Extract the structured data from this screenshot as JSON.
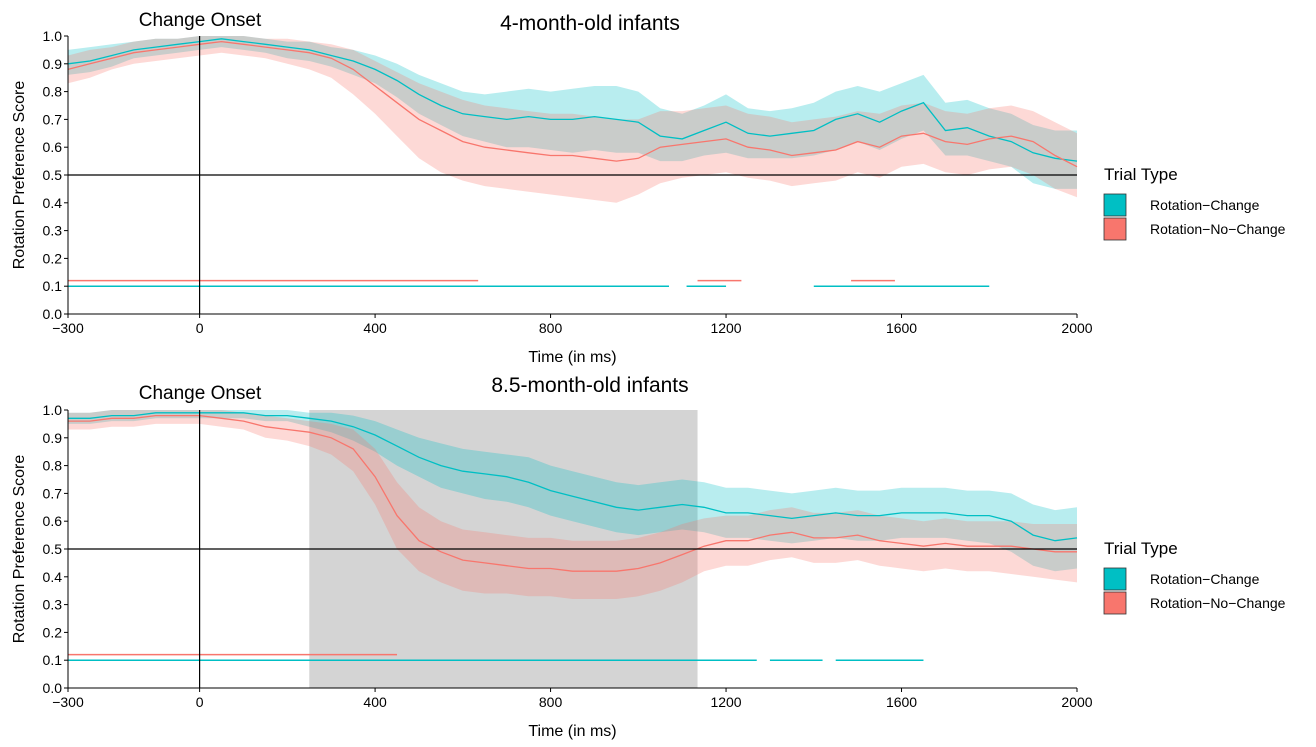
{
  "colors": {
    "change": "#00BFC4",
    "nochange": "#F8766D",
    "window": "#cccccc"
  },
  "legend": {
    "title": "Trial Type",
    "items": [
      "Rotation−Change",
      "Rotation−No−Change"
    ]
  },
  "chart_data": [
    {
      "type": "line",
      "title": "4-month-old infants",
      "annotation": "Change Onset",
      "xlabel": "Time (in ms)",
      "ylabel": "Rotation Preference Score",
      "xlim": [
        -300,
        2000
      ],
      "ylim": [
        0,
        1
      ],
      "xticks": [
        -300,
        0,
        400,
        800,
        1200,
        1600,
        2000
      ],
      "yticks": [
        0.0,
        0.1,
        0.2,
        0.3,
        0.4,
        0.5,
        0.6,
        0.7,
        0.8,
        0.9,
        1.0
      ],
      "reference_lines": {
        "x": 0,
        "y": 0.5
      },
      "highlight_window": null,
      "x": [
        -300,
        -250,
        -200,
        -150,
        -100,
        -50,
        0,
        50,
        100,
        150,
        200,
        250,
        300,
        350,
        400,
        450,
        500,
        550,
        600,
        650,
        700,
        750,
        800,
        850,
        900,
        950,
        1000,
        1050,
        1100,
        1150,
        1200,
        1250,
        1300,
        1350,
        1400,
        1450,
        1500,
        1550,
        1600,
        1650,
        1700,
        1750,
        1800,
        1850,
        1900,
        1950,
        2000
      ],
      "series": [
        {
          "name": "Rotation−Change",
          "values": [
            0.9,
            0.91,
            0.93,
            0.95,
            0.96,
            0.97,
            0.98,
            0.99,
            0.98,
            0.97,
            0.96,
            0.95,
            0.93,
            0.91,
            0.88,
            0.84,
            0.79,
            0.75,
            0.72,
            0.71,
            0.7,
            0.71,
            0.7,
            0.7,
            0.71,
            0.7,
            0.69,
            0.64,
            0.63,
            0.66,
            0.69,
            0.65,
            0.64,
            0.65,
            0.66,
            0.7,
            0.72,
            0.69,
            0.73,
            0.76,
            0.66,
            0.67,
            0.64,
            0.62,
            0.58,
            0.56,
            0.55
          ],
          "lower": [
            0.86,
            0.87,
            0.89,
            0.92,
            0.93,
            0.94,
            0.95,
            0.96,
            0.95,
            0.94,
            0.92,
            0.91,
            0.89,
            0.86,
            0.83,
            0.78,
            0.72,
            0.68,
            0.64,
            0.62,
            0.6,
            0.6,
            0.59,
            0.58,
            0.59,
            0.58,
            0.58,
            0.55,
            0.55,
            0.57,
            0.58,
            0.56,
            0.56,
            0.56,
            0.57,
            0.59,
            0.62,
            0.59,
            0.63,
            0.66,
            0.57,
            0.57,
            0.55,
            0.53,
            0.47,
            0.45,
            0.45
          ],
          "upper": [
            0.95,
            0.96,
            0.97,
            0.98,
            0.99,
            0.99,
            1.0,
            1.0,
            1.0,
            0.99,
            0.98,
            0.98,
            0.96,
            0.95,
            0.93,
            0.9,
            0.86,
            0.83,
            0.8,
            0.79,
            0.8,
            0.81,
            0.8,
            0.81,
            0.82,
            0.82,
            0.8,
            0.74,
            0.72,
            0.75,
            0.79,
            0.74,
            0.73,
            0.74,
            0.76,
            0.8,
            0.82,
            0.8,
            0.83,
            0.86,
            0.76,
            0.77,
            0.74,
            0.72,
            0.68,
            0.66,
            0.66
          ],
          "significance_segments": [
            [
              -300,
              1070
            ],
            [
              1110,
              1200
            ],
            [
              1400,
              1800
            ]
          ]
        },
        {
          "name": "Rotation−No−Change",
          "values": [
            0.88,
            0.9,
            0.92,
            0.94,
            0.95,
            0.96,
            0.97,
            0.98,
            0.97,
            0.96,
            0.95,
            0.94,
            0.92,
            0.88,
            0.82,
            0.76,
            0.7,
            0.66,
            0.62,
            0.6,
            0.59,
            0.58,
            0.57,
            0.57,
            0.56,
            0.55,
            0.56,
            0.6,
            0.61,
            0.62,
            0.63,
            0.6,
            0.59,
            0.57,
            0.58,
            0.59,
            0.62,
            0.6,
            0.64,
            0.65,
            0.62,
            0.61,
            0.63,
            0.64,
            0.62,
            0.57,
            0.53
          ],
          "lower": [
            0.83,
            0.85,
            0.88,
            0.9,
            0.91,
            0.92,
            0.93,
            0.94,
            0.93,
            0.92,
            0.9,
            0.88,
            0.85,
            0.79,
            0.72,
            0.64,
            0.56,
            0.51,
            0.48,
            0.46,
            0.45,
            0.44,
            0.43,
            0.42,
            0.41,
            0.4,
            0.43,
            0.47,
            0.49,
            0.5,
            0.51,
            0.49,
            0.48,
            0.46,
            0.47,
            0.48,
            0.51,
            0.49,
            0.53,
            0.54,
            0.51,
            0.5,
            0.52,
            0.53,
            0.5,
            0.45,
            0.42
          ],
          "upper": [
            0.93,
            0.95,
            0.96,
            0.98,
            0.99,
            0.99,
            1.0,
            1.0,
            1.0,
            0.99,
            0.99,
            0.98,
            0.97,
            0.95,
            0.91,
            0.87,
            0.83,
            0.8,
            0.77,
            0.75,
            0.74,
            0.73,
            0.72,
            0.72,
            0.71,
            0.7,
            0.7,
            0.73,
            0.73,
            0.74,
            0.75,
            0.72,
            0.71,
            0.69,
            0.7,
            0.71,
            0.73,
            0.72,
            0.75,
            0.76,
            0.73,
            0.72,
            0.74,
            0.75,
            0.73,
            0.69,
            0.65
          ],
          "significance_segments": [
            [
              -300,
              635
            ],
            [
              1135,
              1235
            ],
            [
              1485,
              1585
            ]
          ]
        }
      ]
    },
    {
      "type": "line",
      "title": "8.5-month-old infants",
      "annotation": "Change Onset",
      "xlabel": "Time (in ms)",
      "ylabel": "Rotation Preference Score",
      "xlim": [
        -300,
        2000
      ],
      "ylim": [
        0,
        1
      ],
      "xticks": [
        -300,
        0,
        400,
        800,
        1200,
        1600,
        2000
      ],
      "yticks": [
        0.0,
        0.1,
        0.2,
        0.3,
        0.4,
        0.5,
        0.6,
        0.7,
        0.8,
        0.9,
        1.0
      ],
      "reference_lines": {
        "x": 0,
        "y": 0.5
      },
      "highlight_window": [
        250,
        1135
      ],
      "x": [
        -300,
        -250,
        -200,
        -150,
        -100,
        -50,
        0,
        50,
        100,
        150,
        200,
        250,
        300,
        350,
        400,
        450,
        500,
        550,
        600,
        650,
        700,
        750,
        800,
        850,
        900,
        950,
        1000,
        1050,
        1100,
        1150,
        1200,
        1250,
        1300,
        1350,
        1400,
        1450,
        1500,
        1550,
        1600,
        1650,
        1700,
        1750,
        1800,
        1850,
        1900,
        1950,
        2000
      ],
      "series": [
        {
          "name": "Rotation−Change",
          "values": [
            0.97,
            0.97,
            0.98,
            0.98,
            0.99,
            0.99,
            0.99,
            0.99,
            0.99,
            0.98,
            0.98,
            0.97,
            0.96,
            0.94,
            0.91,
            0.87,
            0.83,
            0.8,
            0.78,
            0.77,
            0.76,
            0.74,
            0.71,
            0.69,
            0.67,
            0.65,
            0.64,
            0.65,
            0.66,
            0.65,
            0.63,
            0.63,
            0.62,
            0.61,
            0.62,
            0.63,
            0.62,
            0.62,
            0.63,
            0.63,
            0.63,
            0.62,
            0.62,
            0.6,
            0.55,
            0.53,
            0.54
          ],
          "lower": [
            0.95,
            0.95,
            0.96,
            0.96,
            0.97,
            0.97,
            0.97,
            0.97,
            0.97,
            0.96,
            0.96,
            0.94,
            0.92,
            0.89,
            0.85,
            0.8,
            0.76,
            0.72,
            0.7,
            0.68,
            0.67,
            0.65,
            0.62,
            0.6,
            0.58,
            0.56,
            0.55,
            0.56,
            0.57,
            0.56,
            0.54,
            0.54,
            0.53,
            0.52,
            0.53,
            0.54,
            0.53,
            0.53,
            0.54,
            0.54,
            0.54,
            0.53,
            0.52,
            0.49,
            0.44,
            0.42,
            0.43
          ],
          "upper": [
            0.99,
            0.99,
            1.0,
            1.0,
            1.0,
            1.0,
            1.0,
            1.0,
            1.0,
            1.0,
            1.0,
            0.99,
            0.99,
            0.98,
            0.96,
            0.93,
            0.9,
            0.88,
            0.86,
            0.85,
            0.84,
            0.83,
            0.8,
            0.78,
            0.76,
            0.74,
            0.73,
            0.74,
            0.75,
            0.74,
            0.72,
            0.72,
            0.71,
            0.7,
            0.71,
            0.72,
            0.71,
            0.71,
            0.72,
            0.72,
            0.72,
            0.71,
            0.71,
            0.7,
            0.66,
            0.64,
            0.65
          ],
          "significance_segments": [
            [
              -300,
              1270
            ],
            [
              1300,
              1420
            ],
            [
              1450,
              1650
            ]
          ]
        },
        {
          "name": "Rotation−No−Change",
          "values": [
            0.96,
            0.96,
            0.97,
            0.97,
            0.98,
            0.98,
            0.98,
            0.97,
            0.96,
            0.94,
            0.93,
            0.92,
            0.9,
            0.86,
            0.76,
            0.62,
            0.53,
            0.49,
            0.46,
            0.45,
            0.44,
            0.43,
            0.43,
            0.42,
            0.42,
            0.42,
            0.43,
            0.45,
            0.48,
            0.51,
            0.53,
            0.53,
            0.55,
            0.56,
            0.54,
            0.54,
            0.55,
            0.53,
            0.52,
            0.51,
            0.52,
            0.51,
            0.51,
            0.51,
            0.5,
            0.49,
            0.49
          ],
          "lower": [
            0.93,
            0.93,
            0.94,
            0.94,
            0.95,
            0.95,
            0.95,
            0.94,
            0.93,
            0.9,
            0.89,
            0.87,
            0.84,
            0.78,
            0.66,
            0.5,
            0.42,
            0.38,
            0.35,
            0.34,
            0.34,
            0.33,
            0.33,
            0.32,
            0.32,
            0.32,
            0.33,
            0.35,
            0.38,
            0.42,
            0.44,
            0.44,
            0.46,
            0.47,
            0.45,
            0.45,
            0.46,
            0.44,
            0.43,
            0.42,
            0.43,
            0.42,
            0.42,
            0.41,
            0.4,
            0.39,
            0.38
          ],
          "upper": [
            0.99,
            0.99,
            1.0,
            1.0,
            1.0,
            1.0,
            1.0,
            1.0,
            0.99,
            0.98,
            0.97,
            0.96,
            0.95,
            0.93,
            0.86,
            0.74,
            0.65,
            0.6,
            0.57,
            0.56,
            0.55,
            0.54,
            0.54,
            0.53,
            0.53,
            0.53,
            0.54,
            0.56,
            0.59,
            0.61,
            0.62,
            0.62,
            0.64,
            0.65,
            0.63,
            0.63,
            0.64,
            0.62,
            0.61,
            0.6,
            0.61,
            0.6,
            0.6,
            0.6,
            0.59,
            0.59,
            0.59
          ],
          "significance_segments": [
            [
              -300,
              450
            ]
          ]
        }
      ]
    }
  ]
}
